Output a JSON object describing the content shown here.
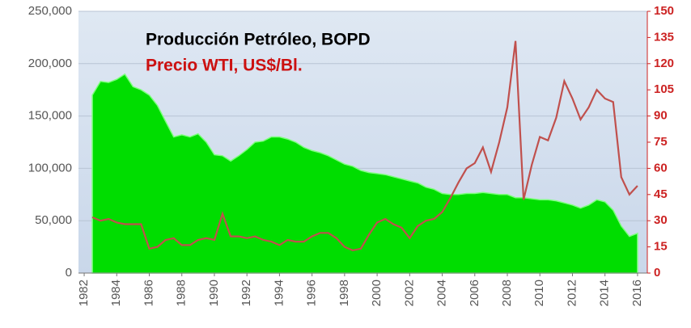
{
  "chart_data": {
    "type": "area_line",
    "title": "Producción Petróleo, BOPD",
    "subtitle": "Precio WTI, US$/Bl.",
    "x": [
      1982.5,
      1983,
      1983.5,
      1984,
      1984.5,
      1985,
      1985.5,
      1986,
      1986.5,
      1987,
      1987.5,
      1988,
      1988.5,
      1989,
      1989.5,
      1990,
      1990.5,
      1991,
      1991.5,
      1992,
      1992.5,
      1993,
      1993.5,
      1994,
      1994.5,
      1995,
      1995.5,
      1996,
      1996.5,
      1997,
      1997.5,
      1998,
      1998.5,
      1999,
      1999.5,
      2000,
      2000.5,
      2001,
      2001.5,
      2002,
      2002.5,
      2003,
      2003.5,
      2004,
      2004.5,
      2005,
      2005.5,
      2006,
      2006.5,
      2007,
      2007.5,
      2008,
      2008.5,
      2009,
      2009.5,
      2010,
      2010.5,
      2011,
      2011.5,
      2012,
      2012.5,
      2013,
      2013.5,
      2014,
      2014.5,
      2015,
      2015.5,
      2016
    ],
    "series": [
      {
        "name": "Producción Petróleo, BOPD",
        "color": "#00dd00",
        "axis": "y",
        "values": [
          170000,
          183000,
          182000,
          185000,
          190000,
          178000,
          175000,
          170000,
          160000,
          145000,
          130000,
          132000,
          130000,
          133000,
          125000,
          113000,
          112000,
          107000,
          112000,
          118000,
          125000,
          126000,
          130000,
          130000,
          128000,
          125000,
          120000,
          117000,
          115000,
          112000,
          108000,
          104000,
          102000,
          98000,
          96000,
          95000,
          94000,
          92000,
          90000,
          88000,
          86000,
          82000,
          80000,
          76000,
          75000,
          75000,
          76000,
          76000,
          77000,
          76000,
          75000,
          75000,
          72000,
          72000,
          71000,
          70000,
          70000,
          69000,
          67000,
          65000,
          62000,
          65000,
          70000,
          68000,
          60000,
          45000,
          35000,
          38000
        ]
      },
      {
        "name": "Precio WTI, US$/Bl.",
        "color": "#c0504d",
        "axis": "y2",
        "values": [
          32,
          30,
          31,
          29,
          28,
          28,
          28,
          14,
          15,
          19,
          20,
          16,
          16,
          19,
          20,
          19,
          34,
          21,
          21,
          20,
          21,
          19,
          18,
          16,
          19,
          18,
          18,
          21,
          23,
          23,
          20,
          15,
          13,
          14,
          22,
          29,
          31,
          28,
          26,
          20,
          27,
          30,
          31,
          35,
          43,
          52,
          60,
          63,
          72,
          58,
          75,
          95,
          133,
          42,
          62,
          78,
          76,
          89,
          110,
          100,
          88,
          95,
          105,
          100,
          98,
          55,
          45,
          50
        ]
      }
    ],
    "xlim": [
      1981.65,
      2016.6
    ],
    "xticks": [
      1982,
      1984,
      1986,
      1988,
      1990,
      1992,
      1994,
      1996,
      1998,
      2000,
      2002,
      2004,
      2006,
      2008,
      2010,
      2012,
      2014,
      2016
    ],
    "ylim": [
      0,
      250000
    ],
    "yticks": [
      0,
      {
        "value": 50000,
        "label": "50,000"
      },
      {
        "value": 100000,
        "label": "100,000"
      },
      {
        "value": 150000,
        "label": "150,000"
      },
      {
        "value": 200000,
        "label": "200,000"
      },
      {
        "value": 250000,
        "label": "250,000"
      }
    ],
    "y2lim": [
      0,
      150
    ],
    "y2ticks": [
      0,
      15,
      30,
      45,
      60,
      75,
      90,
      105,
      120,
      135,
      150
    ],
    "grid": true
  }
}
